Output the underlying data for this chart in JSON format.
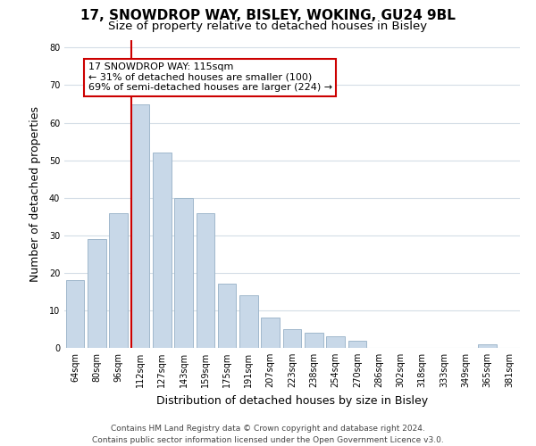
{
  "title": "17, SNOWDROP WAY, BISLEY, WOKING, GU24 9BL",
  "subtitle": "Size of property relative to detached houses in Bisley",
  "xlabel": "Distribution of detached houses by size in Bisley",
  "ylabel": "Number of detached properties",
  "bar_labels": [
    "64sqm",
    "80sqm",
    "96sqm",
    "112sqm",
    "127sqm",
    "143sqm",
    "159sqm",
    "175sqm",
    "191sqm",
    "207sqm",
    "223sqm",
    "238sqm",
    "254sqm",
    "270sqm",
    "286sqm",
    "302sqm",
    "318sqm",
    "333sqm",
    "349sqm",
    "365sqm",
    "381sqm"
  ],
  "bar_values": [
    18,
    29,
    36,
    65,
    52,
    40,
    36,
    17,
    14,
    8,
    5,
    4,
    3,
    2,
    0,
    0,
    0,
    0,
    0,
    1,
    0
  ],
  "bar_color": "#c8d8e8",
  "bar_edge_color": "#a0b8cc",
  "vline_color": "#cc0000",
  "vline_index": 3,
  "annotation_text": "17 SNOWDROP WAY: 115sqm\n← 31% of detached houses are smaller (100)\n69% of semi-detached houses are larger (224) →",
  "annotation_box_edgecolor": "#cc0000",
  "annotation_box_facecolor": "#ffffff",
  "ylim": [
    0,
    82
  ],
  "yticks": [
    0,
    10,
    20,
    30,
    40,
    50,
    60,
    70,
    80
  ],
  "footer_text": "Contains HM Land Registry data © Crown copyright and database right 2024.\nContains public sector information licensed under the Open Government Licence v3.0.",
  "background_color": "#ffffff",
  "grid_color": "#d4dde6",
  "title_fontsize": 11,
  "subtitle_fontsize": 9.5,
  "axis_label_fontsize": 9,
  "tick_fontsize": 7,
  "annotation_fontsize": 8,
  "footer_fontsize": 6.5
}
